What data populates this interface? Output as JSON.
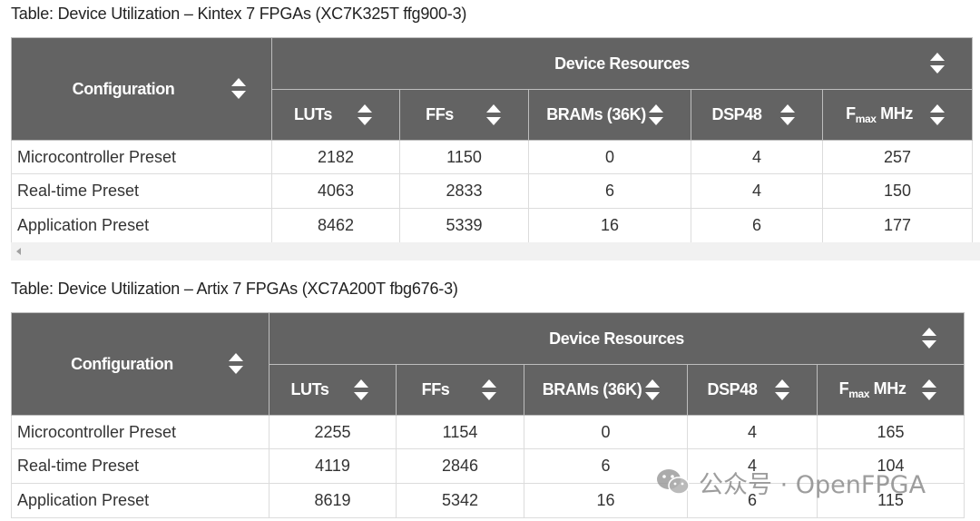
{
  "tables": [
    {
      "caption": "Table: Device Utilization – Kintex 7 FPGAs (XC7K325T ffg900-3)",
      "config_header": "Configuration",
      "group_header": "Device Resources",
      "columns": [
        "LUTs",
        "FFs",
        "BRAMs (36K)",
        "DSP48",
        "MHz"
      ],
      "fmax_main": "F",
      "fmax_sub": "max",
      "rows": [
        {
          "name": "Microcontroller Preset",
          "values": [
            "2182",
            "1150",
            "0",
            "4",
            "257"
          ]
        },
        {
          "name": "Real-time Preset",
          "values": [
            "4063",
            "2833",
            "6",
            "4",
            "150"
          ]
        },
        {
          "name": "Application Preset",
          "values": [
            "8462",
            "5339",
            "16",
            "6",
            "177"
          ]
        }
      ]
    },
    {
      "caption": "Table: Device Utilization – Artix 7 FPGAs (XC7A200T fbg676-3)",
      "config_header": "Configuration",
      "group_header": "Device Resources",
      "columns": [
        "LUTs",
        "FFs",
        "BRAMs (36K)",
        "DSP48",
        "MHz"
      ],
      "fmax_main": "F",
      "fmax_sub": "max",
      "rows": [
        {
          "name": "Microcontroller Preset",
          "values": [
            "2255",
            "1154",
            "0",
            "4",
            "165"
          ]
        },
        {
          "name": "Real-time Preset",
          "values": [
            "4119",
            "2846",
            "6",
            "4",
            "104"
          ]
        },
        {
          "name": "Application Preset",
          "values": [
            "8619",
            "5342",
            "16",
            "6",
            "115"
          ]
        }
      ]
    }
  ],
  "watermark": "公众号 · OpenFPGA",
  "icons": {
    "sort": "sort-icon",
    "scroll_left": "scroll-left-arrow-icon",
    "watermark_logo": "wechat-icon"
  },
  "colors": {
    "header_bg": "#636363",
    "header_text": "#ffffff",
    "border": "#dcdcdc"
  }
}
